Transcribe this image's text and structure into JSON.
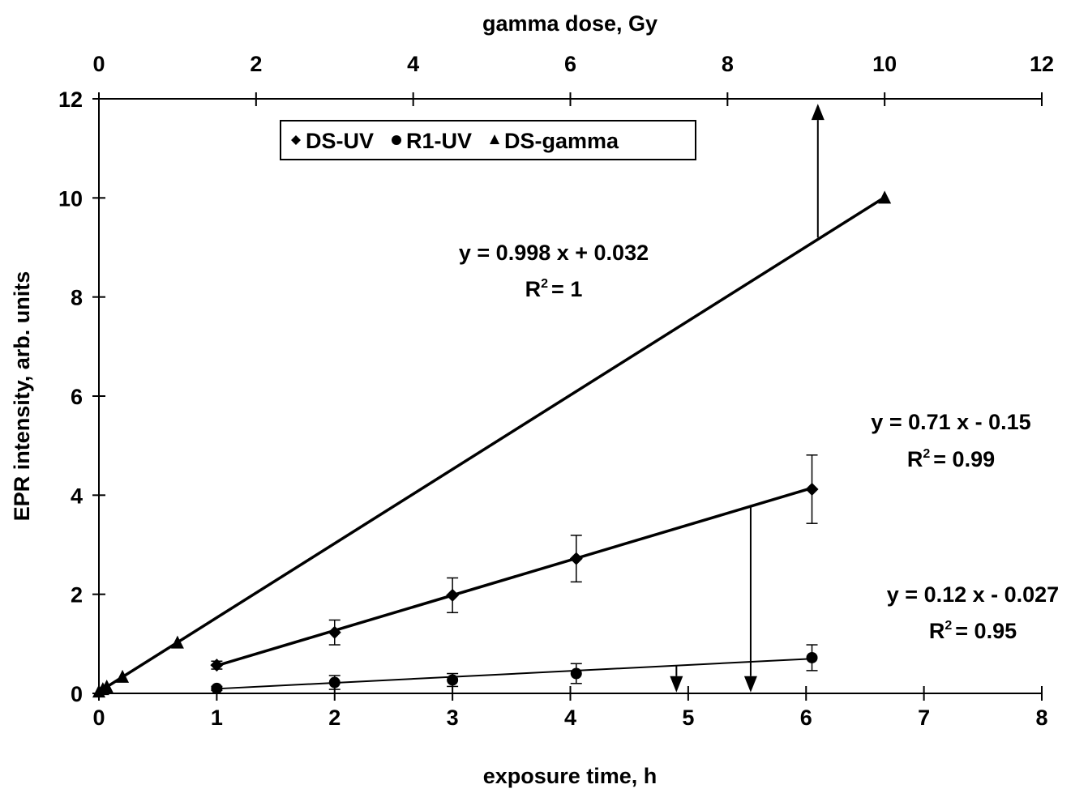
{
  "chart_data": {
    "type": "scatter",
    "title": "",
    "xlabel": "exposure time, h",
    "ylabel": "EPR intensity, arb. units",
    "x2label": "gamma dose, Gy",
    "xlim": [
      0,
      8
    ],
    "ylim": [
      0,
      12
    ],
    "x2lim": [
      0,
      12
    ],
    "xticks": [
      "0",
      "1",
      "2",
      "3",
      "4",
      "5",
      "6",
      "7",
      "8"
    ],
    "yticks": [
      "0",
      "2",
      "4",
      "6",
      "8",
      "10",
      "12"
    ],
    "x2ticks": [
      "0",
      "2",
      "4",
      "6",
      "8",
      "10",
      "12"
    ],
    "grid": false,
    "legend_position": "top-left",
    "series": [
      {
        "name": "DS-UV",
        "marker": "diamond",
        "axis": "bottom",
        "x": [
          1,
          2,
          3,
          4.05,
          6.05
        ],
        "y": [
          0.57,
          1.23,
          1.98,
          2.72,
          4.12
        ],
        "yerr": [
          0.08,
          0.25,
          0.35,
          0.47,
          0.69
        ]
      },
      {
        "name": "R1-UV",
        "marker": "circle",
        "axis": "bottom",
        "x": [
          1,
          2,
          3,
          4.05,
          6.05
        ],
        "y": [
          0.1,
          0.22,
          0.27,
          0.4,
          0.72
        ],
        "yerr": [
          0.04,
          0.14,
          0.13,
          0.2,
          0.26
        ]
      },
      {
        "name": "DS-gamma",
        "marker": "triangle",
        "axis": "top",
        "x": [
          0,
          0.05,
          0.1,
          0.3,
          1,
          10
        ],
        "y": [
          0.03,
          0.08,
          0.13,
          0.33,
          1.02,
          10.0
        ]
      }
    ],
    "fits": [
      {
        "series": "DS-gamma",
        "axis": "top",
        "slope": 0.998,
        "intercept": 0.032,
        "x_range": [
          0,
          10
        ],
        "equation": "y = 0.998 x + 0.032",
        "r2_label": "R",
        "r2_value": "= 1"
      },
      {
        "series": "DS-UV",
        "axis": "bottom",
        "slope": 0.71,
        "intercept": -0.15,
        "x_range": [
          1,
          6.05
        ],
        "equation": "y = 0.71 x - 0.15",
        "r2_label": "R",
        "r2_value": "= 0.99"
      },
      {
        "series": "R1-UV",
        "axis": "bottom",
        "slope": 0.12,
        "intercept": -0.027,
        "x_range": [
          1,
          6.05
        ],
        "equation": "y = 0.12 x - 0.027",
        "r2_label": "R",
        "r2_value": "= 0.95"
      }
    ],
    "arrows": [
      {
        "axis": "bottom",
        "x": 6.1,
        "y_from": 9.2,
        "y_to": 11.9
      },
      {
        "axis": "bottom",
        "x": 5.53,
        "y_from": 3.78,
        "y_to": 0.02
      },
      {
        "axis": "bottom",
        "x": 4.9,
        "y_from": 0.56,
        "y_to": 0.02
      }
    ]
  }
}
